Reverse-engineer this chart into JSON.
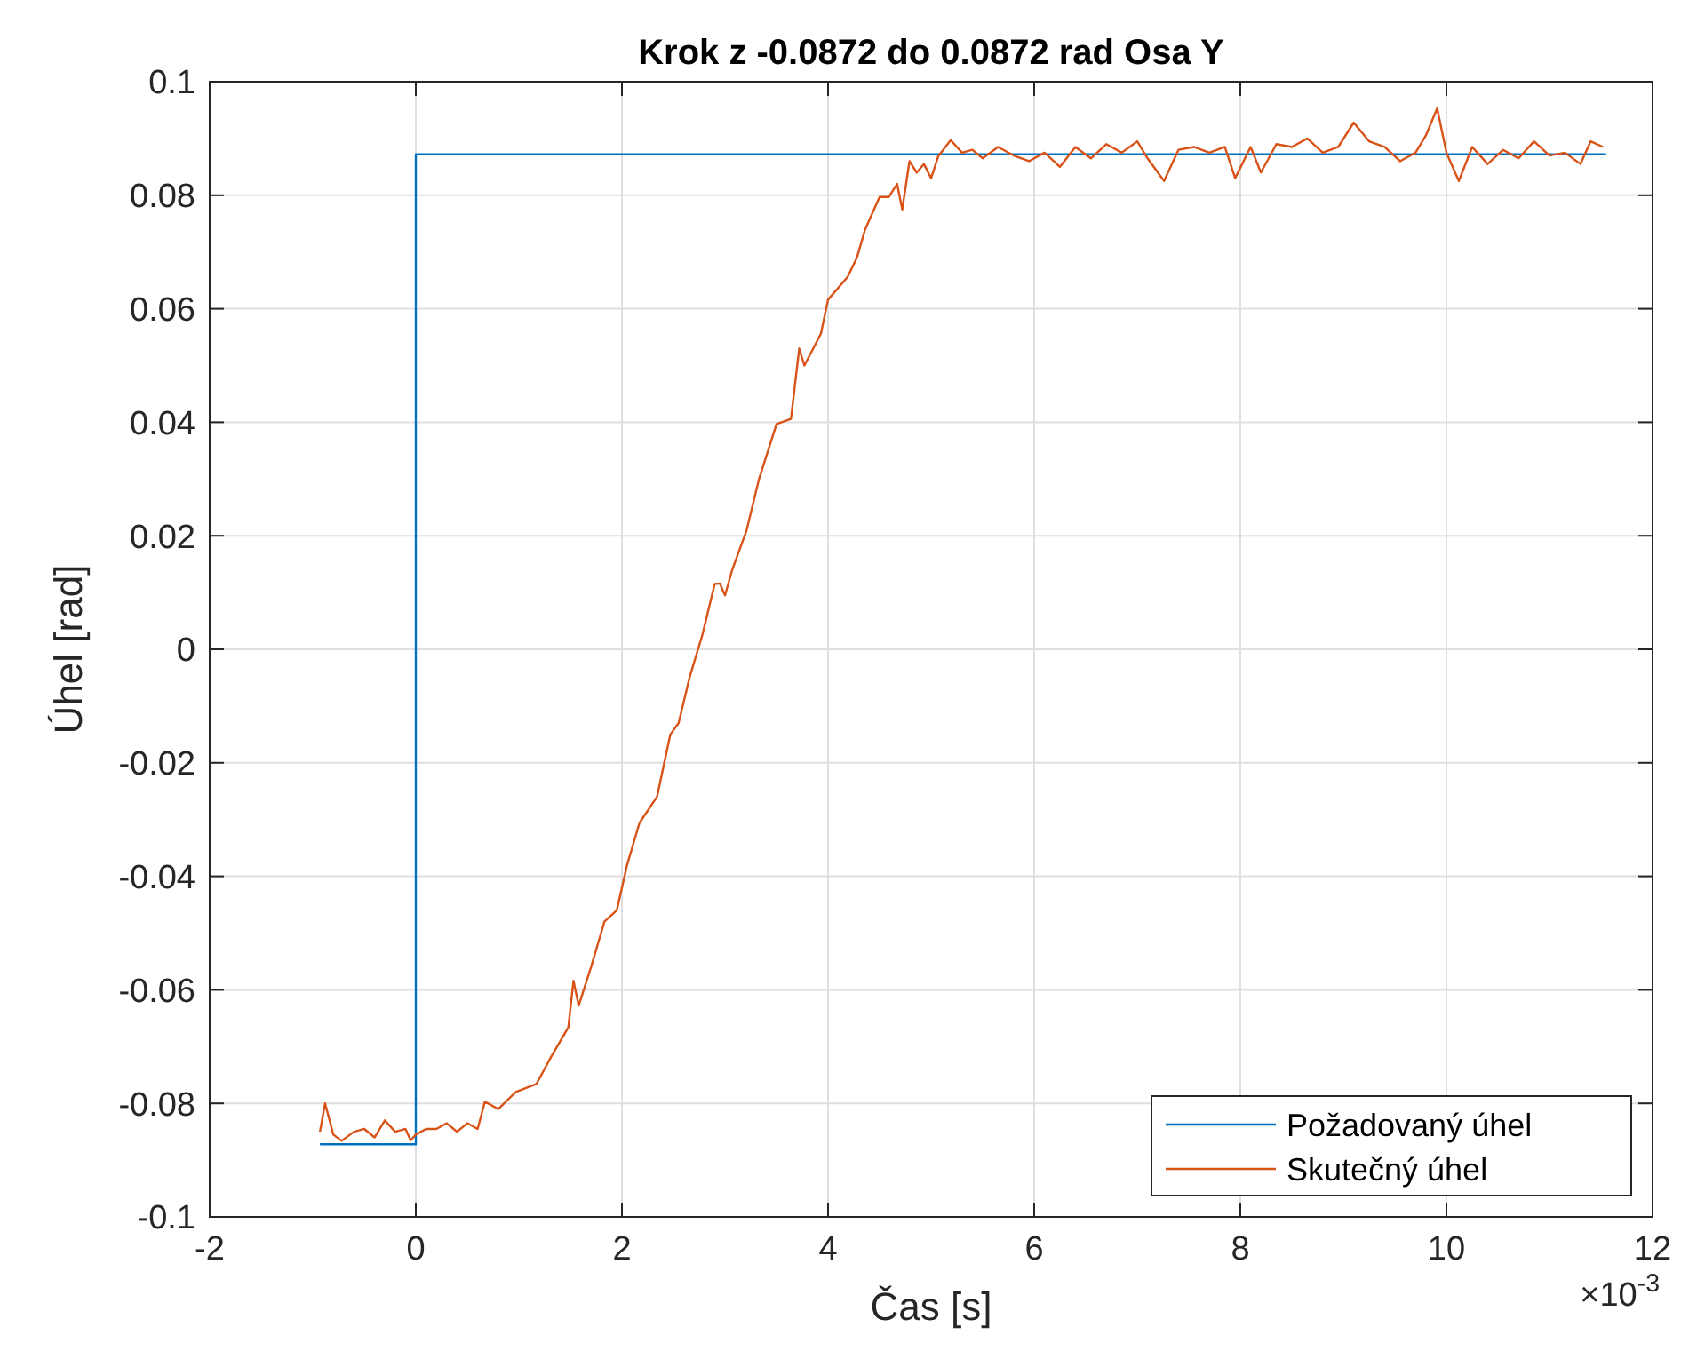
{
  "chart_data": {
    "type": "line",
    "title": "Krok z -0.0872 do 0.0872 rad Osa Y",
    "xlabel": "Čas [s]",
    "ylabel": "Úhel [rad]",
    "annotations": [
      "×10$^{-3}$"
    ],
    "xlim": [
      -2,
      12
    ],
    "xticks": [
      -2,
      0,
      2,
      4,
      6,
      8,
      10,
      12
    ],
    "ylim": [
      -0.1,
      0.1
    ],
    "yticks": [
      -0.1,
      -0.08,
      -0.06,
      -0.04,
      -0.02,
      0,
      0.02,
      0.04,
      0.06,
      0.08,
      0.1
    ],
    "grid": true,
    "legend": "bottom right",
    "line_style": "solid",
    "marker": "none",
    "series": [
      {
        "name": "Požadovaný úhel",
        "color": "#0072bd",
        "x": [
          -0.93,
          0,
          0,
          11.55
        ],
        "values": [
          -0.0872,
          -0.0872,
          0.0872,
          0.0872
        ]
      },
      {
        "name": "Skutečný úhel",
        "color": "#d95319",
        "x": [
          -0.93,
          -0.88,
          -0.8,
          -0.72,
          -0.6,
          -0.5,
          -0.4,
          -0.3,
          -0.2,
          -0.1,
          -0.05,
          0,
          0.1,
          0.2,
          0.3,
          0.4,
          0.5,
          0.6,
          0.67,
          0.8,
          0.97,
          1.17,
          1.31,
          1.48,
          1.53,
          1.58,
          1.7,
          1.83,
          1.95,
          2.05,
          2.17,
          2.34,
          2.47,
          2.55,
          2.66,
          2.78,
          2.9,
          2.95,
          3,
          3.07,
          3.21,
          3.33,
          3.5,
          3.64,
          3.72,
          3.77,
          3.93,
          4,
          4.19,
          4.28,
          4.36,
          4.5,
          4.59,
          4.67,
          4.72,
          4.79,
          4.86,
          4.93,
          5,
          5.07,
          5.19,
          5.3,
          5.4,
          5.5,
          5.65,
          5.8,
          5.95,
          6.1,
          6.25,
          6.4,
          6.55,
          6.7,
          6.85,
          7,
          7.1,
          7.26,
          7.4,
          7.55,
          7.7,
          7.85,
          7.95,
          8.1,
          8.2,
          8.35,
          8.5,
          8.65,
          8.8,
          8.95,
          9.1,
          9.25,
          9.4,
          9.55,
          9.7,
          9.8,
          9.91,
          10,
          10.12,
          10.25,
          10.4,
          10.55,
          10.7,
          10.85,
          11,
          11.15,
          11.3,
          11.4,
          11.52
        ],
        "values": [
          -0.085,
          -0.08,
          -0.0855,
          -0.0866,
          -0.085,
          -0.0845,
          -0.086,
          -0.083,
          -0.085,
          -0.0845,
          -0.0865,
          -0.0855,
          -0.0845,
          -0.0845,
          -0.0835,
          -0.085,
          -0.0835,
          -0.0845,
          -0.0797,
          -0.081,
          -0.078,
          -0.0766,
          -0.0719,
          -0.0666,
          -0.0584,
          -0.0628,
          -0.056,
          -0.048,
          -0.046,
          -0.038,
          -0.0306,
          -0.026,
          -0.015,
          -0.013,
          -0.0047,
          0.0025,
          0.0115,
          0.0116,
          0.0095,
          0.014,
          0.021,
          0.03,
          0.0397,
          0.0406,
          0.053,
          0.05,
          0.0556,
          0.0616,
          0.0656,
          0.069,
          0.074,
          0.0797,
          0.0797,
          0.082,
          0.0775,
          0.086,
          0.084,
          0.0855,
          0.083,
          0.0869,
          0.0897,
          0.0875,
          0.088,
          0.0865,
          0.0885,
          0.087,
          0.086,
          0.0875,
          0.085,
          0.0885,
          0.0865,
          0.089,
          0.0875,
          0.0895,
          0.0865,
          0.0825,
          0.088,
          0.0885,
          0.0875,
          0.0885,
          0.083,
          0.0885,
          0.084,
          0.089,
          0.0885,
          0.09,
          0.0875,
          0.0885,
          0.0928,
          0.0895,
          0.0885,
          0.086,
          0.0875,
          0.0905,
          0.0953,
          0.0875,
          0.0825,
          0.0885,
          0.0855,
          0.088,
          0.0865,
          0.0895,
          0.087,
          0.0875,
          0.0855,
          0.0895,
          0.0885
        ]
      }
    ]
  }
}
